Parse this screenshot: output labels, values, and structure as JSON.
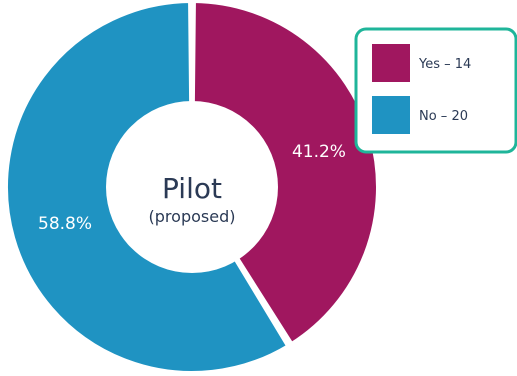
{
  "chart_data": {
    "type": "pie",
    "title": "Pilot",
    "subtitle": "(proposed)",
    "categories": [
      "Yes",
      "No"
    ],
    "values": [
      14,
      20
    ],
    "percent_labels": [
      "41.2%",
      "58.8%"
    ],
    "legend_labels": [
      "Yes – 14",
      "No – 20"
    ],
    "colors": [
      "#a0175f",
      "#1f93c2"
    ],
    "legend_border_color": "#1fb59a",
    "legend_position": "top-right",
    "hole": "donut"
  }
}
